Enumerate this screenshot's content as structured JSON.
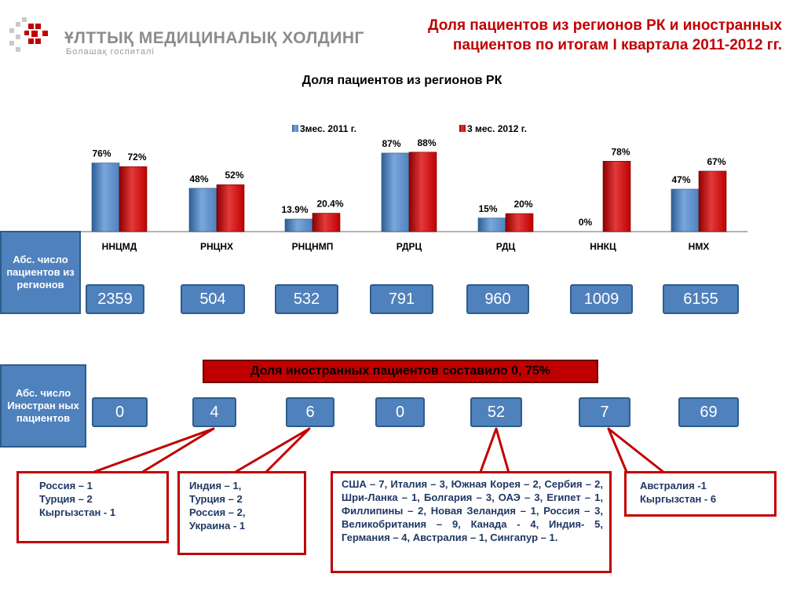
{
  "header": {
    "logo_text": "ҰЛТТЫҚ МЕДИЦИНАЛЫҚ ХОЛДИНГ",
    "logo_sub": "Болашақ госпиталі",
    "title_line1": "Доля пациентов из регионов РК и иностранных",
    "title_line2": "пациентов по итогам I квартала 2011-2012 гг."
  },
  "chart_data": {
    "type": "bar",
    "title": "Доля пациентов из регионов РК",
    "categories": [
      "ННЦМД",
      "РНЦНХ",
      "РНЦНМП",
      "РДРЦ",
      "РДЦ",
      "ННКЦ",
      "НМХ"
    ],
    "series": [
      {
        "name": "3мес. 2011 г.",
        "values": [
          76,
          48,
          13.9,
          87,
          15,
          0,
          47
        ],
        "labels": [
          "76%",
          "48%",
          "13.9%",
          "87%",
          "15%",
          "0%",
          "47%"
        ],
        "color": "#4f81bd"
      },
      {
        "name": "3 мес. 2012 г.",
        "values": [
          72,
          52,
          20.4,
          88,
          20,
          78,
          67
        ],
        "labels": [
          "72%",
          "52%",
          "20.4%",
          "88%",
          "20%",
          "78%",
          "67%"
        ],
        "color": "#c00000"
      }
    ],
    "ylim": [
      0,
      100
    ],
    "legend": "top-center",
    "grid": false
  },
  "regional": {
    "label": "Абс. число пациентов из регионов",
    "values": [
      "2359",
      "504",
      "532",
      "791",
      "960",
      "1009",
      "6155"
    ]
  },
  "foreign": {
    "banner": "Доля иностранных пациентов составило  0, 75%",
    "label": "Абс. число Иностран ных пациентов",
    "values": [
      "0",
      "4",
      "6",
      "0",
      "52",
      "7",
      "69"
    ]
  },
  "notes": [
    [
      "Россия – 1",
      "Турция – 2",
      "Кыргызстан - 1"
    ],
    [
      "Индия – 1,",
      "Турция – 2",
      "Россия – 2,",
      "Украина - 1"
    ],
    [
      "США – 7, Италия – 3, Южная Корея – 2, Сербия – 2, Шри-Ланка – 1, Болгария – 3, ОАЭ – 3, Египет – 1, Филлипины – 2, Новая Зеландия – 1, Россия – 3, Великобритания – 9, Канада - 4, Индия- 5, Германия – 4, Австралия – 1, Сингапур – 1."
    ],
    [
      "Австралия -1",
      "Кыргызстан - 6"
    ]
  ],
  "colors": {
    "accent_red": "#c00000",
    "box_blue": "#4f81bd",
    "text_navy": "#1f3864"
  }
}
